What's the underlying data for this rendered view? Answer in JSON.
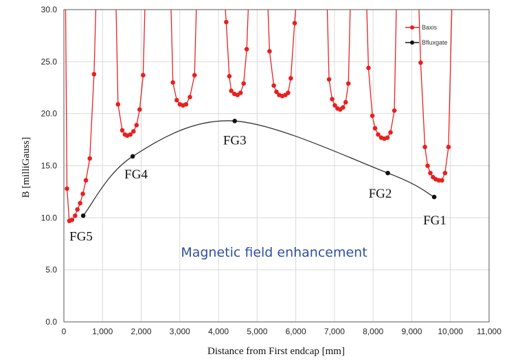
{
  "chart_data": {
    "type": "line",
    "xlabel": "Distance from First endcap  [mm]",
    "ylabel": "B  [milliGauss]",
    "xlim": [
      0,
      11000
    ],
    "ylim": [
      0,
      30
    ],
    "x_ticks": [
      0,
      1000,
      2000,
      3000,
      4000,
      5000,
      6000,
      7000,
      8000,
      9000,
      10000,
      11000
    ],
    "x_tick_labels": [
      "0",
      "1,000",
      "2,000",
      "3,000",
      "4,000",
      "5,000",
      "6,000",
      "7,000",
      "8,000",
      "9,000",
      "10,000",
      "11,000"
    ],
    "y_ticks": [
      0,
      5,
      10,
      15,
      20,
      25,
      30
    ],
    "y_tick_labels": [
      "0.0",
      "5.0",
      "10.0",
      "15.0",
      "20.0",
      "25.0",
      "30.0"
    ],
    "grid": true,
    "legend_position": "top-right",
    "series": [
      {
        "name": "Baxis",
        "color": "#e8201f",
        "marker": "circle",
        "points": [
          [
            80,
            12.8
          ],
          [
            140,
            9.7
          ],
          [
            210,
            9.8
          ],
          [
            290,
            10.2
          ],
          [
            350,
            10.8
          ],
          [
            420,
            11.4
          ],
          [
            490,
            12.3
          ],
          [
            570,
            13.6
          ],
          [
            670,
            15.7
          ],
          [
            780,
            23.8
          ],
          [
            1400,
            20.9
          ],
          [
            1510,
            18.4
          ],
          [
            1580,
            18.0
          ],
          [
            1640,
            17.9
          ],
          [
            1720,
            18.0
          ],
          [
            1800,
            18.3
          ],
          [
            1880,
            18.9
          ],
          [
            1960,
            20.4
          ],
          [
            2050,
            23.7
          ],
          [
            2820,
            23.0
          ],
          [
            2920,
            21.3
          ],
          [
            3000,
            20.9
          ],
          [
            3080,
            20.8
          ],
          [
            3160,
            20.9
          ],
          [
            3260,
            21.6
          ],
          [
            3380,
            23.7
          ],
          [
            4200,
            28.8
          ],
          [
            4280,
            23.6
          ],
          [
            4330,
            22.2
          ],
          [
            4410,
            21.9
          ],
          [
            4490,
            21.8
          ],
          [
            4570,
            22.0
          ],
          [
            4650,
            22.9
          ],
          [
            4730,
            26.2
          ],
          [
            5320,
            26.0
          ],
          [
            5430,
            22.7
          ],
          [
            5500,
            22.1
          ],
          [
            5570,
            21.8
          ],
          [
            5650,
            21.7
          ],
          [
            5730,
            21.8
          ],
          [
            5800,
            22.0
          ],
          [
            5870,
            23.4
          ],
          [
            5970,
            28.7
          ],
          [
            6860,
            23.3
          ],
          [
            6940,
            21.4
          ],
          [
            7010,
            20.8
          ],
          [
            7080,
            20.5
          ],
          [
            7150,
            20.4
          ],
          [
            7220,
            20.6
          ],
          [
            7290,
            21.1
          ],
          [
            7360,
            22.9
          ],
          [
            7880,
            24.4
          ],
          [
            7980,
            19.8
          ],
          [
            8050,
            18.6
          ],
          [
            8130,
            18.0
          ],
          [
            8210,
            17.7
          ],
          [
            8290,
            17.6
          ],
          [
            8370,
            17.7
          ],
          [
            8450,
            18.2
          ],
          [
            8550,
            20.3
          ],
          [
            9230,
            24.9
          ],
          [
            9340,
            16.8
          ],
          [
            9410,
            15.0
          ],
          [
            9480,
            14.3
          ],
          [
            9550,
            13.9
          ],
          [
            9620,
            13.7
          ],
          [
            9700,
            13.6
          ],
          [
            9780,
            13.6
          ],
          [
            9860,
            14.3
          ],
          [
            9950,
            16.8
          ]
        ]
      },
      {
        "name": "Bfluxgate",
        "color": "#111111",
        "marker": "circle",
        "points": [
          {
            "x": 500,
            "y": 10.2,
            "label": "FG5"
          },
          {
            "x": 1780,
            "y": 15.9,
            "label": "FG4"
          },
          {
            "x": 4420,
            "y": 19.3,
            "label": "FG3"
          },
          {
            "x": 8380,
            "y": 14.3,
            "label": "FG2"
          },
          {
            "x": 9580,
            "y": 12.0,
            "label": "FG1"
          }
        ]
      }
    ],
    "annotation": "Magnetic field enhancement"
  }
}
